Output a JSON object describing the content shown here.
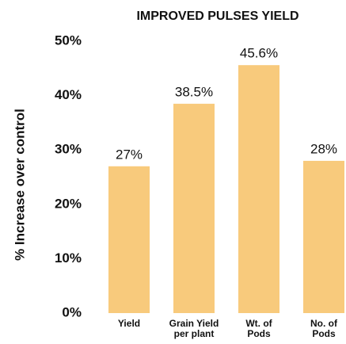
{
  "chart_data": {
    "type": "bar",
    "title": "IMPROVED PULSES YIELD",
    "ylabel": "% Increase over control",
    "categories": [
      "Yield",
      "Grain Yield\nper plant",
      "Wt. of\nPods",
      "No. of\nPods"
    ],
    "values": [
      27,
      38.5,
      45.6,
      28
    ],
    "value_labels": [
      "27%",
      "38.5%",
      "45.6%",
      "28%"
    ],
    "color": "#f8ca7c",
    "ylim": [
      0,
      50
    ],
    "yticks": [
      {
        "value": 0,
        "label": "0%"
      },
      {
        "value": 10,
        "label": "10%"
      },
      {
        "value": 20,
        "label": "20%"
      },
      {
        "value": 30,
        "label": "30%"
      },
      {
        "value": 40,
        "label": "40%"
      },
      {
        "value": 50,
        "label": "50%"
      }
    ],
    "grid": false
  }
}
